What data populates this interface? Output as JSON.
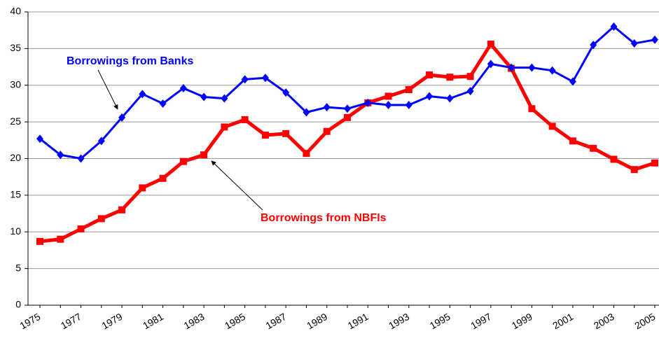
{
  "chart_data": {
    "type": "line",
    "categories": [
      "1975",
      null,
      "1977",
      null,
      "1979",
      null,
      "1981",
      null,
      "1983",
      null,
      "1985",
      null,
      "1987",
      null,
      "1989",
      null,
      "1991",
      null,
      "1993",
      null,
      "1995",
      null,
      "1997",
      null,
      "1999",
      null,
      "2001",
      null,
      "2003",
      null,
      "2005"
    ],
    "series": [
      {
        "name": "Borrowings from NBFIs",
        "color": "#ff0000",
        "marker": "square",
        "values": [
          8.7,
          9.0,
          10.4,
          11.8,
          13.0,
          16.0,
          17.3,
          19.6,
          20.5,
          24.3,
          25.3,
          23.2,
          23.4,
          20.7,
          23.7,
          25.6,
          27.6,
          28.5,
          29.4,
          31.4,
          31.1,
          31.2,
          35.6,
          32.3,
          26.8,
          24.4,
          22.4,
          21.4,
          19.9,
          18.5,
          19.4
        ]
      },
      {
        "name": "Borrowings from Banks",
        "color": "#0000ff",
        "marker": "diamond",
        "values": [
          22.7,
          20.5,
          20.0,
          22.4,
          25.6,
          28.8,
          27.5,
          29.6,
          28.4,
          28.2,
          30.8,
          31.0,
          29.0,
          26.3,
          27.0,
          26.8,
          27.6,
          27.3,
          27.3,
          28.5,
          28.2,
          29.2,
          32.9,
          32.4,
          32.4,
          32.0,
          30.5,
          35.5,
          38.0,
          35.7,
          36.2
        ]
      }
    ],
    "ylim": [
      0,
      40
    ],
    "yticks": [
      0,
      5,
      10,
      15,
      20,
      25,
      30,
      35,
      40
    ],
    "grid": true
  }
}
